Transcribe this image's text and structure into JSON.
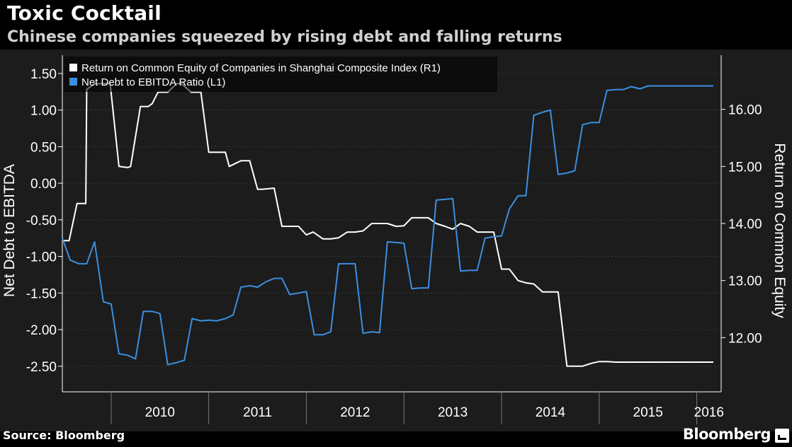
{
  "title": "Toxic Cocktail",
  "subtitle": "Chinese companies squeezed by rising debt and falling returns",
  "source": "Source: Bloomberg",
  "brand": "Bloomberg",
  "colors": {
    "background": "#000000",
    "plot_background": "#1c1c1c",
    "roe_line": "#ffffff",
    "debt_line": "#3b8fe0",
    "axis_text": "#ffffff",
    "grid": "#3a3a3a"
  },
  "chart_data": {
    "type": "line",
    "x_tick_labels": [
      "2010",
      "2011",
      "2012",
      "2013",
      "2014",
      "2015",
      "2016"
    ],
    "y_left_label": "Net Debt to EBITDA",
    "y_right_label": "Return on Common Equity",
    "y_left_ticks": [
      "1.50",
      "1.00",
      "0.50",
      "0.00",
      "-0.50",
      "-1.00",
      "-1.50",
      "-2.00",
      "-2.50"
    ],
    "y_right_ticks": [
      "16.00",
      "15.00",
      "14.00",
      "13.00",
      "12.00"
    ],
    "y_left_range": [
      -2.85,
      1.75
    ],
    "y_right_range": [
      11.05,
      16.95
    ],
    "x_range": [
      2009.5,
      2016.25
    ],
    "grid": "horizontal dashed",
    "legend_position": "top-left",
    "series": [
      {
        "name": "Return on Common Equity of Companies in Shanghai Composite Index (R1)",
        "axis": "right",
        "color": "#ffffff",
        "x": [
          2009.5,
          2009.55,
          2009.57,
          2009.65,
          2009.74,
          2009.75,
          2009.83,
          2009.93,
          2009.99,
          2010.08,
          2010.17,
          2010.2,
          2010.3,
          2010.38,
          2010.42,
          2010.48,
          2010.52,
          2010.58,
          2010.67,
          2010.72,
          2010.82,
          2010.9,
          2010.92,
          2011.0,
          2011.09,
          2011.17,
          2011.21,
          2011.33,
          2011.42,
          2011.5,
          2011.55,
          2011.67,
          2011.75,
          2011.83,
          2011.92,
          2012.0,
          2012.07,
          2012.17,
          2012.25,
          2012.33,
          2012.42,
          2012.5,
          2012.58,
          2012.67,
          2012.75,
          2012.83,
          2012.92,
          2013.0,
          2013.08,
          2013.17,
          2013.25,
          2013.33,
          2013.42,
          2013.5,
          2013.58,
          2013.67,
          2013.75,
          2013.83,
          2013.92,
          2014.0,
          2014.08,
          2014.17,
          2014.25,
          2014.33,
          2014.42,
          2014.5,
          2014.58,
          2014.67,
          2014.75,
          2014.83,
          2014.92,
          2015.0,
          2015.08,
          2015.17,
          2015.25,
          2015.33,
          2015.42,
          2015.5,
          2015.58,
          2015.67,
          2015.75,
          2015.83,
          2015.92,
          2016.0,
          2016.08,
          2016.17
        ],
        "values": [
          13.7,
          13.7,
          13.7,
          14.35,
          14.35,
          16.35,
          16.45,
          16.45,
          16.45,
          15.0,
          14.98,
          15.0,
          16.05,
          16.05,
          16.1,
          16.3,
          16.3,
          16.3,
          16.45,
          16.45,
          16.3,
          16.3,
          16.3,
          15.25,
          15.25,
          15.25,
          15.0,
          15.1,
          15.1,
          14.6,
          14.6,
          14.62,
          13.95,
          13.95,
          13.95,
          13.8,
          13.85,
          13.73,
          13.73,
          13.75,
          13.85,
          13.85,
          13.87,
          14.0,
          14.0,
          14.0,
          13.95,
          13.96,
          14.1,
          14.1,
          14.1,
          14.0,
          13.95,
          13.9,
          14.0,
          13.95,
          13.85,
          13.85,
          13.85,
          13.2,
          13.2,
          13.0,
          12.96,
          12.94,
          12.8,
          12.8,
          12.8,
          11.5,
          11.5,
          11.5,
          11.55,
          11.58,
          11.58,
          11.57,
          11.57,
          11.57,
          11.57,
          11.57,
          11.57,
          11.57,
          11.57,
          11.57,
          11.57,
          11.57,
          11.57,
          11.57
        ]
      },
      {
        "name": "Net Debt to EBITDA Ratio (L1)",
        "axis": "left",
        "color": "#3b8fe0",
        "x": [
          2009.5,
          2009.58,
          2009.67,
          2009.75,
          2009.83,
          2009.92,
          2010.0,
          2010.08,
          2010.17,
          2010.25,
          2010.33,
          2010.42,
          2010.5,
          2010.58,
          2010.67,
          2010.75,
          2010.83,
          2010.92,
          2011.0,
          2011.08,
          2011.17,
          2011.25,
          2011.33,
          2011.42,
          2011.5,
          2011.58,
          2011.67,
          2011.75,
          2011.83,
          2011.92,
          2012.0,
          2012.08,
          2012.17,
          2012.25,
          2012.33,
          2012.42,
          2012.5,
          2012.58,
          2012.67,
          2012.75,
          2012.83,
          2012.92,
          2013.0,
          2013.08,
          2013.17,
          2013.25,
          2013.33,
          2013.42,
          2013.5,
          2013.58,
          2013.67,
          2013.75,
          2013.83,
          2013.92,
          2014.0,
          2014.08,
          2014.17,
          2014.25,
          2014.33,
          2014.42,
          2014.5,
          2014.58,
          2014.67,
          2014.75,
          2014.83,
          2014.92,
          2015.0,
          2015.08,
          2015.17,
          2015.25,
          2015.33,
          2015.42,
          2015.5,
          2015.58,
          2015.67,
          2015.75,
          2015.83,
          2015.92,
          2016.0,
          2016.08,
          2016.17
        ],
        "values": [
          -0.75,
          -1.05,
          -1.1,
          -1.1,
          -0.8,
          -1.62,
          -1.65,
          -2.33,
          -2.35,
          -2.4,
          -1.75,
          -1.75,
          -1.78,
          -2.48,
          -2.45,
          -2.42,
          -1.85,
          -1.88,
          -1.87,
          -1.88,
          -1.85,
          -1.8,
          -1.42,
          -1.4,
          -1.42,
          -1.35,
          -1.3,
          -1.3,
          -1.52,
          -1.5,
          -1.48,
          -2.07,
          -2.07,
          -2.03,
          -1.1,
          -1.1,
          -1.1,
          -2.05,
          -2.03,
          -2.04,
          -0.8,
          -0.81,
          -0.82,
          -1.44,
          -1.43,
          -1.43,
          -0.23,
          -0.22,
          -0.21,
          -1.2,
          -1.19,
          -1.19,
          -0.75,
          -0.73,
          -0.72,
          -0.35,
          -0.17,
          -0.17,
          0.93,
          0.97,
          1.0,
          0.12,
          0.14,
          0.17,
          0.8,
          0.83,
          0.83,
          1.27,
          1.28,
          1.28,
          1.32,
          1.29,
          1.33,
          1.33,
          1.33,
          1.33,
          1.33,
          1.33,
          1.33,
          1.33,
          1.33
        ]
      }
    ]
  }
}
